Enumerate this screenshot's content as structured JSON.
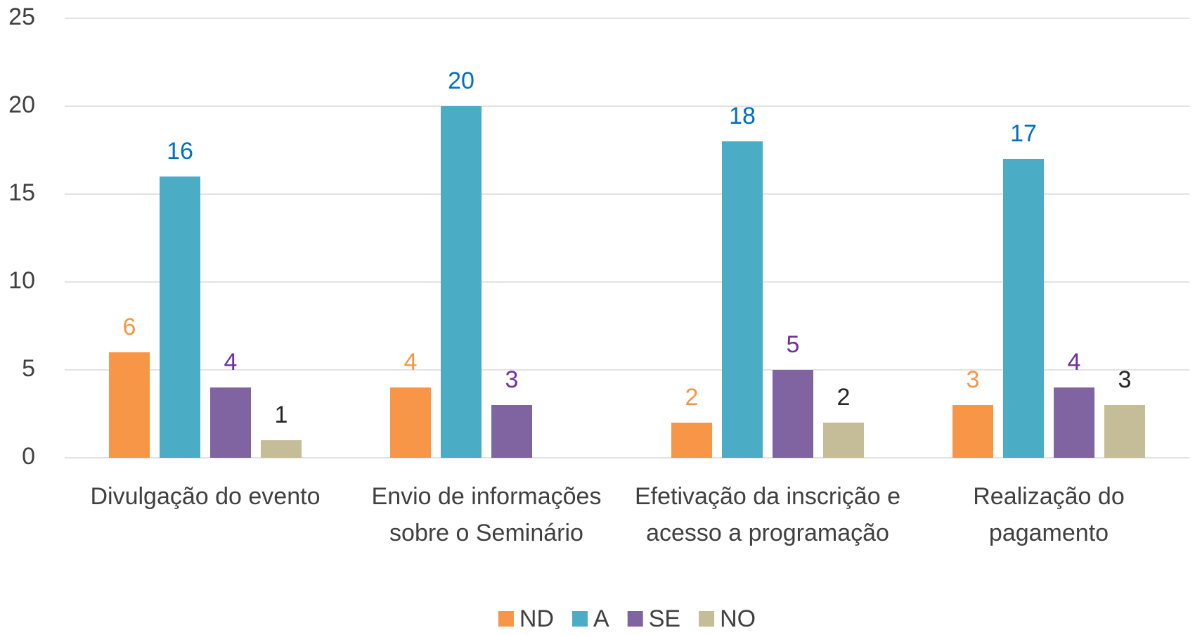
{
  "chart_data": {
    "type": "bar",
    "categories": [
      "Divulgação do evento",
      "Envio de informações sobre o Seminário",
      "Efetivação da inscrição e acesso a programação",
      "Realização do pagamento"
    ],
    "series": [
      {
        "name": "ND",
        "color": "#f79646",
        "label_color": "#f79646",
        "values": [
          6,
          4,
          2,
          3
        ]
      },
      {
        "name": "A",
        "color": "#4bacc6",
        "label_color": "#0070c0",
        "values": [
          16,
          20,
          18,
          17
        ]
      },
      {
        "name": "SE",
        "color": "#8064a2",
        "label_color": "#7030a0",
        "values": [
          4,
          3,
          5,
          4
        ]
      },
      {
        "name": "NO",
        "color": "#c4bd97",
        "label_color": "#262626",
        "values": [
          1,
          null,
          2,
          3
        ]
      }
    ],
    "ylim": [
      0,
      25
    ],
    "yticks": [
      0,
      5,
      10,
      15,
      20,
      25
    ],
    "grid": true,
    "legend": "bottom"
  }
}
